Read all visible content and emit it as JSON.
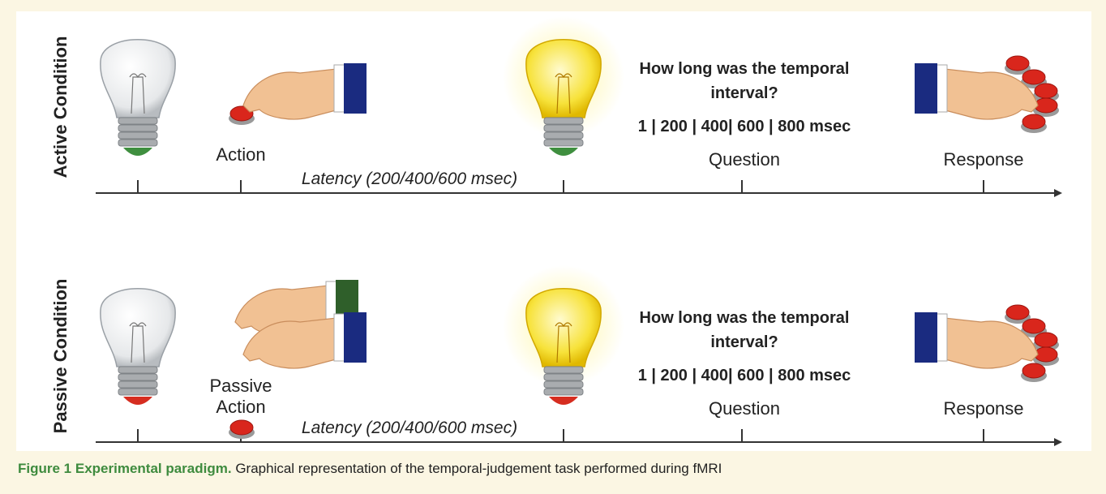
{
  "conditions": [
    {
      "label": "Active Condition",
      "action": "Action",
      "latency": "Latency (200/400/600 msec)",
      "question": "How long was the temporal interval?",
      "options": "1 | 200 | 400| 600 | 800 msec",
      "question_label": "Question",
      "response_label": "Response"
    },
    {
      "label": "Passive Condition",
      "action": "Passive Action",
      "latency": "Latency (200/400/600 msec)",
      "question": "How long was the temporal interval?",
      "options": "1 | 200 | 400| 600 | 800 msec",
      "question_label": "Question",
      "response_label": "Response"
    }
  ],
  "caption": {
    "label": "Figure 1",
    "title": "Experimental paradigm.",
    "text": "Graphical representation of the temporal-judgement task performed during fMRI"
  }
}
